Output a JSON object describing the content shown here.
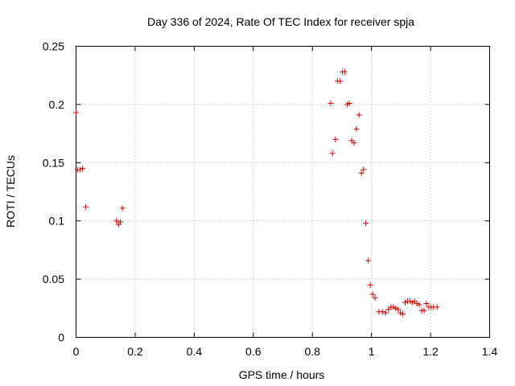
{
  "chart_data": {
    "type": "scatter",
    "title": "Day 336 of 2024, Rate Of TEC Index for receiver spja",
    "xlabel": "GPS time / hours",
    "ylabel": "ROTI / TECUs",
    "xlim": [
      0,
      1.4
    ],
    "ylim": [
      0,
      0.25
    ],
    "xticks": [
      0,
      0.2,
      0.4,
      0.6,
      0.8,
      1,
      1.2,
      1.4
    ],
    "xtick_labels": [
      "0",
      "0.2",
      "0.4",
      "0.6",
      "0.8",
      "1",
      "1.2",
      "1.4"
    ],
    "yticks": [
      0,
      0.05,
      0.1,
      0.15,
      0.2,
      0.25
    ],
    "ytick_labels": [
      "0",
      "0.05",
      "0.1",
      "0.15",
      "0.2",
      "0.25"
    ],
    "grid": true,
    "marker": "+",
    "marker_color": "#cc0000",
    "series": [
      {
        "name": "ROTI",
        "points": [
          [
            0.0,
            0.193
          ],
          [
            0.005,
            0.144
          ],
          [
            0.014,
            0.144
          ],
          [
            0.022,
            0.145
          ],
          [
            0.033,
            0.112
          ],
          [
            0.137,
            0.1
          ],
          [
            0.144,
            0.097
          ],
          [
            0.15,
            0.099
          ],
          [
            0.157,
            0.111
          ],
          [
            0.862,
            0.201
          ],
          [
            0.868,
            0.158
          ],
          [
            0.878,
            0.17
          ],
          [
            0.885,
            0.22
          ],
          [
            0.894,
            0.22
          ],
          [
            0.902,
            0.228
          ],
          [
            0.91,
            0.228
          ],
          [
            0.918,
            0.2
          ],
          [
            0.925,
            0.201
          ],
          [
            0.933,
            0.169
          ],
          [
            0.941,
            0.167
          ],
          [
            0.949,
            0.179
          ],
          [
            0.958,
            0.191
          ],
          [
            0.966,
            0.141
          ],
          [
            0.973,
            0.144
          ],
          [
            0.981,
            0.098
          ],
          [
            0.989,
            0.066
          ],
          [
            0.996,
            0.045
          ],
          [
            1.004,
            0.037
          ],
          [
            1.012,
            0.034
          ],
          [
            1.025,
            0.022
          ],
          [
            1.037,
            0.022
          ],
          [
            1.048,
            0.021
          ],
          [
            1.058,
            0.024
          ],
          [
            1.066,
            0.026
          ],
          [
            1.074,
            0.026
          ],
          [
            1.082,
            0.025
          ],
          [
            1.09,
            0.024
          ],
          [
            1.098,
            0.021
          ],
          [
            1.106,
            0.02
          ],
          [
            1.114,
            0.03
          ],
          [
            1.122,
            0.031
          ],
          [
            1.13,
            0.031
          ],
          [
            1.138,
            0.03
          ],
          [
            1.146,
            0.031
          ],
          [
            1.154,
            0.029
          ],
          [
            1.162,
            0.028
          ],
          [
            1.17,
            0.023
          ],
          [
            1.178,
            0.023
          ],
          [
            1.186,
            0.029
          ],
          [
            1.194,
            0.026
          ],
          [
            1.202,
            0.026
          ],
          [
            1.21,
            0.026
          ],
          [
            1.222,
            0.026
          ]
        ]
      }
    ]
  }
}
